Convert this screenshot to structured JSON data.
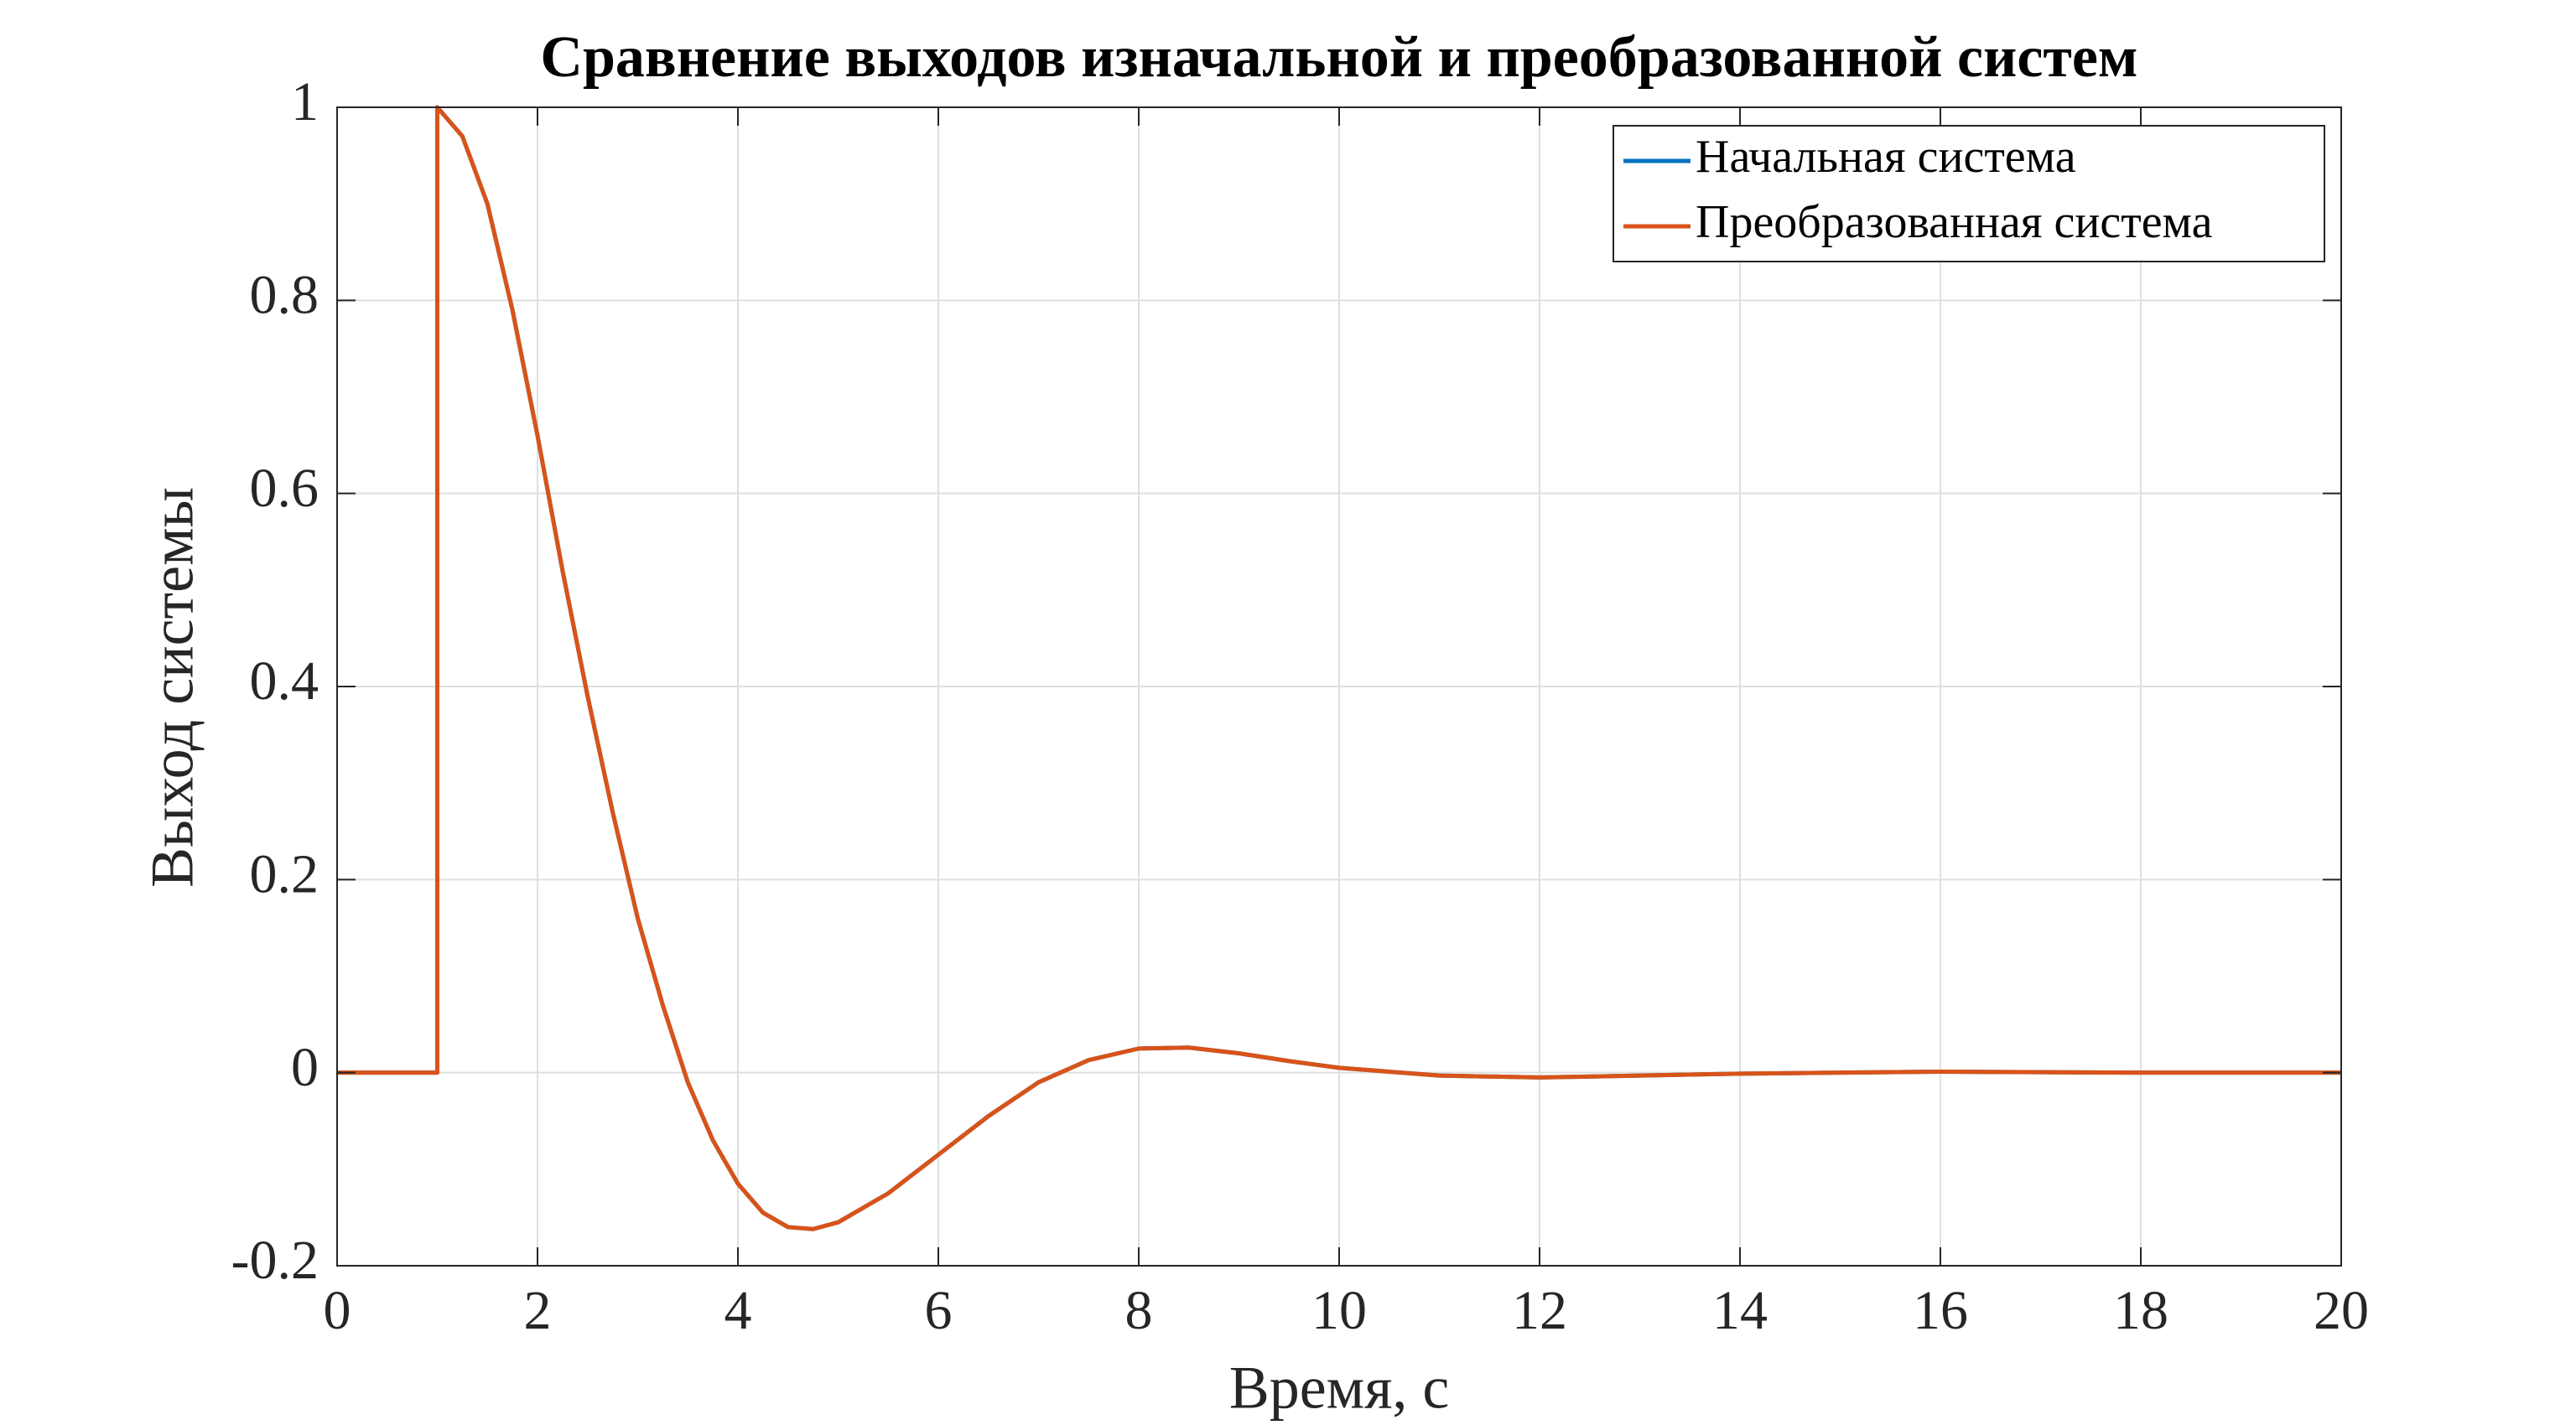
{
  "chart_data": {
    "type": "line",
    "title": "Сравнение выходов изначальной и преобразованной систем",
    "xlabel": "Время, с",
    "ylabel": "Выход системы",
    "x": [
      0,
      1,
      1,
      1.25,
      1.5,
      1.75,
      2,
      2.25,
      2.5,
      2.75,
      3,
      3.25,
      3.5,
      3.75,
      4,
      4.25,
      4.5,
      4.75,
      5,
      5.5,
      6,
      6.5,
      7,
      7.5,
      8,
      8.5,
      9,
      9.5,
      10,
      11,
      12,
      13,
      14,
      15,
      16,
      18,
      20
    ],
    "series": [
      {
        "name": "Начальная система",
        "color": "#0072bd",
        "values": [
          0,
          0,
          1,
          0.97,
          0.9,
          0.79,
          0.66,
          0.52,
          0.39,
          0.27,
          0.16,
          0.07,
          -0.01,
          -0.07,
          -0.115,
          -0.145,
          -0.16,
          -0.162,
          -0.155,
          -0.125,
          -0.085,
          -0.045,
          -0.01,
          0.013,
          0.025,
          0.026,
          0.02,
          0.012,
          0.005,
          -0.003,
          -0.005,
          -0.003,
          -0.001,
          0,
          0.001,
          0,
          0
        ]
      },
      {
        "name": "Преобразованная система",
        "color": "#d95319",
        "values": [
          0,
          0,
          1,
          0.97,
          0.9,
          0.79,
          0.66,
          0.52,
          0.39,
          0.27,
          0.16,
          0.07,
          -0.01,
          -0.07,
          -0.115,
          -0.145,
          -0.16,
          -0.162,
          -0.155,
          -0.125,
          -0.085,
          -0.045,
          -0.01,
          0.013,
          0.025,
          0.026,
          0.02,
          0.012,
          0.005,
          -0.003,
          -0.005,
          -0.003,
          -0.001,
          0,
          0.001,
          0,
          0
        ]
      }
    ],
    "xlim": [
      0,
      20
    ],
    "xticks": [
      0,
      2,
      4,
      6,
      8,
      10,
      12,
      14,
      16,
      18,
      20
    ],
    "ylim": [
      -0.2,
      1
    ],
    "yticks": [
      -0.2,
      0,
      0.2,
      0.4,
      0.6,
      0.8,
      1
    ],
    "grid": true,
    "legend": "upper-right"
  }
}
